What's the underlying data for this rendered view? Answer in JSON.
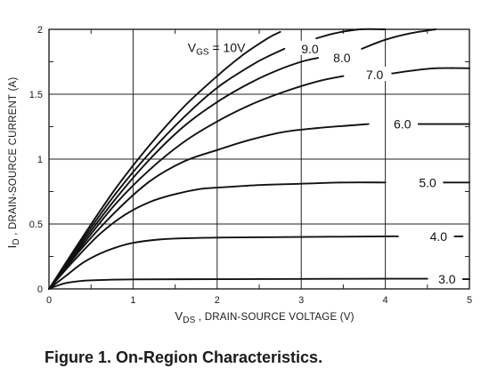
{
  "caption": "Figure 1. On-Region Characteristics.",
  "chart_data": {
    "type": "line",
    "xlabel": {
      "main": "V",
      "sub": "DS",
      "rest": " , DRAIN-SOURCE VOLTAGE (V)"
    },
    "ylabel": {
      "main": "I",
      "sub": "D",
      "rest": " , DRAIN-SOURCE CURRENT (A)"
    },
    "xlim": [
      0,
      5
    ],
    "ylim": [
      0,
      2
    ],
    "xticks": [
      0,
      1,
      2,
      3,
      4,
      5
    ],
    "yticks": [
      0,
      0.5,
      1,
      1.5,
      2
    ],
    "ytick_labels": [
      "0",
      "0.5",
      "1",
      "1.5",
      "2"
    ],
    "grid": true,
    "legend_title": {
      "main": "V",
      "sub": "GS",
      "rest": " = 10V"
    },
    "series": [
      {
        "name": "3.0",
        "x": [
          0,
          0.1,
          0.2,
          0.4,
          0.7,
          1.0,
          2.0,
          3.0,
          4.0,
          4.5
        ],
        "y": [
          0,
          0.025,
          0.045,
          0.062,
          0.07,
          0.073,
          0.075,
          0.077,
          0.078,
          0.078
        ]
      },
      {
        "name": "4.0",
        "x": [
          0,
          0.2,
          0.4,
          0.6,
          0.8,
          1.0,
          1.3,
          1.6,
          2.0,
          3.0,
          4.0,
          4.15
        ],
        "y": [
          0,
          0.1,
          0.2,
          0.27,
          0.32,
          0.355,
          0.38,
          0.39,
          0.395,
          0.4,
          0.405,
          0.405
        ]
      },
      {
        "name": "5.0",
        "x": [
          0,
          0.3,
          0.6,
          0.9,
          1.2,
          1.5,
          1.8,
          2.0,
          2.5,
          3.0,
          3.5,
          4.0
        ],
        "y": [
          0,
          0.22,
          0.42,
          0.57,
          0.67,
          0.73,
          0.77,
          0.78,
          0.8,
          0.81,
          0.82,
          0.82
        ]
      },
      {
        "name": "6.0",
        "x": [
          0,
          0.4,
          0.8,
          1.2,
          1.6,
          2.0,
          2.4,
          2.8,
          3.2,
          3.6,
          3.8
        ],
        "y": [
          0,
          0.32,
          0.6,
          0.83,
          0.98,
          1.07,
          1.15,
          1.21,
          1.24,
          1.26,
          1.27
        ]
      },
      {
        "name": "7.0",
        "x": [
          0,
          0.4,
          0.8,
          1.2,
          1.6,
          2.0,
          2.4,
          2.8,
          3.2,
          3.5
        ],
        "y": [
          0,
          0.34,
          0.66,
          0.92,
          1.13,
          1.29,
          1.42,
          1.52,
          1.6,
          1.64
        ]
      },
      {
        "name": "8.0",
        "x": [
          0,
          0.4,
          0.8,
          1.2,
          1.6,
          2.0,
          2.4,
          2.7,
          3.0,
          3.2
        ],
        "y": [
          0,
          0.36,
          0.7,
          1.0,
          1.25,
          1.44,
          1.59,
          1.68,
          1.75,
          1.78
        ]
      },
      {
        "name": "9.0",
        "x": [
          0,
          0.4,
          0.8,
          1.2,
          1.6,
          2.0,
          2.4,
          2.6,
          2.8
        ],
        "y": [
          0,
          0.38,
          0.74,
          1.05,
          1.32,
          1.55,
          1.72,
          1.79,
          1.85
        ]
      },
      {
        "name": "10V",
        "x": [
          0,
          0.4,
          0.8,
          1.2,
          1.6,
          2.0,
          2.3,
          2.6,
          2.75
        ],
        "y": [
          0,
          0.4,
          0.78,
          1.11,
          1.4,
          1.64,
          1.8,
          1.93,
          1.98
        ]
      }
    ],
    "curve_tails": [
      {
        "series": "3.0",
        "x": [
          4.82,
          5.0
        ],
        "y": [
          0.075,
          0.075
        ]
      },
      {
        "series": "4.0",
        "x": [
          4.7,
          4.92
        ],
        "y": [
          0.405,
          0.405
        ]
      },
      {
        "series": "5.0",
        "x": [
          4.62,
          5.0
        ],
        "y": [
          0.82,
          0.82
        ]
      },
      {
        "series": "6.0",
        "x": [
          4.32,
          5.0
        ],
        "y": [
          1.27,
          1.27
        ]
      },
      {
        "series": "7.0",
        "x": [
          4.08,
          4.3,
          4.6,
          5.0
        ],
        "y": [
          1.66,
          1.68,
          1.7,
          1.7
        ]
      },
      {
        "series": "8.0",
        "x": [
          3.72,
          4.0,
          4.3,
          4.6
        ],
        "y": [
          1.85,
          1.92,
          1.97,
          2.0
        ]
      },
      {
        "series": "9.0",
        "x": [
          3.18,
          3.4,
          3.7,
          4.0
        ],
        "y": [
          1.93,
          1.97,
          2.0,
          2.0
        ]
      }
    ],
    "curve_labels": [
      {
        "text": "3.0",
        "x": 4.63,
        "y": 0.075
      },
      {
        "text": "4.0",
        "x": 4.53,
        "y": 0.405
      },
      {
        "text": "5.0",
        "x": 4.4,
        "y": 0.82
      },
      {
        "text": "6.0",
        "x": 4.1,
        "y": 1.27
      },
      {
        "text": "7.0",
        "x": 3.77,
        "y": 1.65
      },
      {
        "text": "8.0",
        "x": 3.38,
        "y": 1.78
      },
      {
        "text": "9.0",
        "x": 3.0,
        "y": 1.85
      }
    ],
    "legend_title_pos": {
      "x": 1.65,
      "y": 1.86
    }
  }
}
